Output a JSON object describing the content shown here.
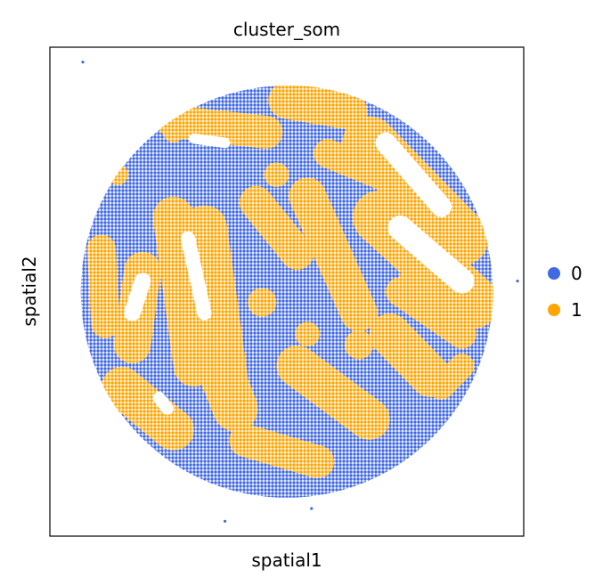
{
  "chart_data": {
    "type": "scatter",
    "title": "cluster_som",
    "xlabel": "spatial1",
    "ylabel": "spatial2",
    "x_ticks": [],
    "y_ticks": [],
    "grid": false,
    "legend_placement": "right",
    "domain": {
      "x": [
        -1.15,
        1.15
      ],
      "y": [
        -1.15,
        1.15
      ]
    },
    "spot_region": {
      "shape": "circle",
      "center": [
        0,
        0
      ],
      "radius": 1.0
    },
    "series": [
      {
        "name": "0",
        "color": "#4169E1",
        "role": "background spots"
      },
      {
        "name": "1",
        "color": "#FFA500",
        "role": "elongated bands"
      }
    ],
    "cluster1_bands": [
      {
        "x1": -0.55,
        "y1": 0.35,
        "x2": -0.45,
        "y2": -0.35,
        "w": 0.1
      },
      {
        "x1": -0.4,
        "y1": 0.3,
        "x2": -0.3,
        "y2": -0.4,
        "w": 0.11
      },
      {
        "x1": -0.7,
        "y1": 0.1,
        "x2": -0.75,
        "y2": -0.25,
        "w": 0.09
      },
      {
        "x1": -0.15,
        "y1": 0.42,
        "x2": 0.05,
        "y2": 0.18,
        "w": 0.08
      },
      {
        "x1": 0.1,
        "y1": 0.45,
        "x2": 0.35,
        "y2": -0.1,
        "w": 0.09
      },
      {
        "x1": 0.4,
        "y1": 0.7,
        "x2": 0.85,
        "y2": 0.25,
        "w": 0.13
      },
      {
        "x1": 0.45,
        "y1": 0.35,
        "x2": 0.9,
        "y2": -0.05,
        "w": 0.13
      },
      {
        "x1": -0.55,
        "y1": 0.8,
        "x2": -0.1,
        "y2": 0.75,
        "w": 0.08
      },
      {
        "x1": 0.0,
        "y1": 0.9,
        "x2": 0.3,
        "y2": 0.85,
        "w": 0.09
      },
      {
        "x1": 0.2,
        "y1": 0.65,
        "x2": 0.45,
        "y2": 0.55,
        "w": 0.07
      },
      {
        "x1": -0.8,
        "y1": -0.45,
        "x2": -0.55,
        "y2": -0.65,
        "w": 0.1
      },
      {
        "x1": -0.35,
        "y1": -0.3,
        "x2": -0.25,
        "y2": -0.55,
        "w": 0.11
      },
      {
        "x1": 0.05,
        "y1": -0.35,
        "x2": 0.4,
        "y2": -0.6,
        "w": 0.1
      },
      {
        "x1": 0.5,
        "y1": -0.2,
        "x2": 0.7,
        "y2": -0.4,
        "w": 0.1
      },
      {
        "x1": -0.2,
        "y1": -0.7,
        "x2": 0.15,
        "y2": -0.8,
        "w": 0.08
      },
      {
        "x1": 0.55,
        "y1": 0.0,
        "x2": 0.85,
        "y2": -0.2,
        "w": 0.07
      },
      {
        "x1": -0.9,
        "y1": 0.2,
        "x2": -0.88,
        "y2": -0.15,
        "w": 0.07
      },
      {
        "x1": 0.75,
        "y1": -0.45,
        "x2": 0.85,
        "y2": -0.35,
        "w": 0.06
      }
    ],
    "cluster1_blobs": [
      {
        "cx": -0.12,
        "cy": -0.05,
        "r": 0.07
      },
      {
        "cx": 0.1,
        "cy": -0.2,
        "r": 0.06
      },
      {
        "cx": 0.35,
        "cy": -0.25,
        "r": 0.07
      },
      {
        "cx": -0.55,
        "cy": 0.75,
        "r": 0.05
      },
      {
        "cx": -0.82,
        "cy": 0.55,
        "r": 0.05
      },
      {
        "cx": 0.6,
        "cy": 0.05,
        "r": 0.06
      },
      {
        "cx": -0.05,
        "cy": 0.55,
        "r": 0.06
      }
    ],
    "empty_tissue_holes": [
      {
        "x1": -0.48,
        "y1": 0.25,
        "x2": -0.4,
        "y2": -0.1,
        "w": 0.035
      },
      {
        "x1": 0.48,
        "y1": 0.7,
        "x2": 0.75,
        "y2": 0.4,
        "w": 0.05
      },
      {
        "x1": 0.55,
        "y1": 0.3,
        "x2": 0.85,
        "y2": 0.05,
        "w": 0.06
      },
      {
        "x1": -0.7,
        "y1": 0.05,
        "x2": -0.75,
        "y2": -0.1,
        "w": 0.04
      },
      {
        "x1": -0.45,
        "y1": 0.72,
        "x2": -0.3,
        "y2": 0.7,
        "w": 0.025
      },
      {
        "x1": -0.62,
        "y1": -0.5,
        "x2": -0.58,
        "y2": -0.55,
        "w": 0.03
      }
    ],
    "stray_spots": [
      {
        "x": -0.99,
        "y": 1.08,
        "series": "0"
      },
      {
        "x": 1.12,
        "y": 0.05,
        "series": "0"
      },
      {
        "x": -0.3,
        "y": -1.08,
        "series": "0"
      },
      {
        "x": 0.12,
        "y": -1.02,
        "series": "0"
      }
    ]
  },
  "legend": {
    "items": [
      {
        "label": "0",
        "color": "#4169E1"
      },
      {
        "label": "1",
        "color": "#FFA500"
      }
    ]
  }
}
